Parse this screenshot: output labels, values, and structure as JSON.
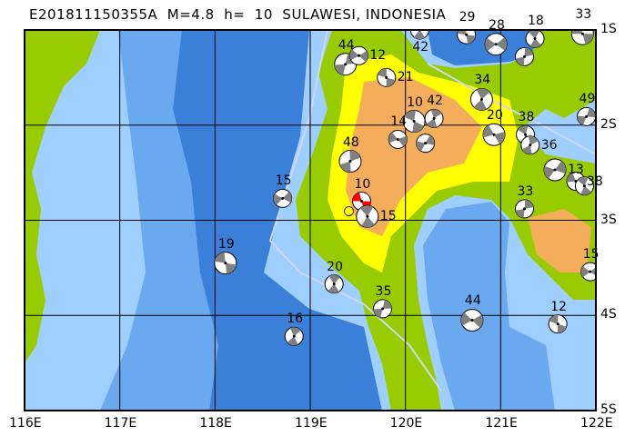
{
  "header": {
    "title": "E201811150355A  M=4.8  h=  10  SULAWESI, INDONESIA"
  },
  "map": {
    "lon_range": [
      116,
      122
    ],
    "lat_range": [
      -1,
      -5
    ],
    "x_ticks": [
      "116E",
      "117E",
      "118E",
      "119E",
      "120E",
      "121E",
      "122E"
    ],
    "y_ticks": [
      "1S",
      "2S",
      "3S",
      "4S",
      "5S"
    ],
    "colors": {
      "deep_sea": "#3a80d8",
      "mid_sea": "#6aa8f0",
      "shallow_sea": "#9ecfff",
      "lowland": "#99cc00",
      "hills": "#ffff00",
      "highland": "#f4ad5a",
      "mechanism_fill": "#808080",
      "main_event": "#ff0000",
      "epicenter": "#ffff00"
    }
  },
  "events": [
    {
      "lon": 121.86,
      "lat": -1.04,
      "depth": "33"
    },
    {
      "lon": 121.36,
      "lat": -1.09,
      "depth": "18"
    },
    {
      "lon": 121.25,
      "lat": -1.28,
      "depth": ""
    },
    {
      "lon": 120.95,
      "lat": -1.15,
      "depth": "28"
    },
    {
      "lon": 120.64,
      "lat": -1.05,
      "depth": "29"
    },
    {
      "lon": 120.15,
      "lat": -1.0,
      "depth": "42"
    },
    {
      "lon": 119.37,
      "lat": -1.36,
      "depth": "44"
    },
    {
      "lon": 119.51,
      "lat": -1.27,
      "depth": "12"
    },
    {
      "lon": 119.8,
      "lat": -1.5,
      "depth": "21"
    },
    {
      "lon": 120.8,
      "lat": -1.73,
      "depth": "34"
    },
    {
      "lon": 121.9,
      "lat": -1.91,
      "depth": "49"
    },
    {
      "lon": 119.92,
      "lat": -2.15,
      "depth": "14"
    },
    {
      "lon": 120.09,
      "lat": -1.96,
      "depth": "10"
    },
    {
      "lon": 120.3,
      "lat": -1.93,
      "depth": "42"
    },
    {
      "lon": 120.21,
      "lat": -2.19,
      "depth": ""
    },
    {
      "lon": 120.93,
      "lat": -2.1,
      "depth": "20"
    },
    {
      "lon": 121.26,
      "lat": -2.1,
      "depth": "38"
    },
    {
      "lon": 121.31,
      "lat": -2.21,
      "depth": "36"
    },
    {
      "lon": 121.57,
      "lat": -2.47,
      "depth": "13"
    },
    {
      "lon": 121.79,
      "lat": -2.59,
      "depth": "38"
    },
    {
      "lon": 121.88,
      "lat": -2.64,
      "depth": ""
    },
    {
      "lon": 119.42,
      "lat": -2.38,
      "depth": "48"
    },
    {
      "lon": 118.71,
      "lat": -2.77,
      "depth": "15"
    },
    {
      "lon": 119.54,
      "lat": -2.8,
      "depth": "10",
      "main": true
    },
    {
      "lon": 119.6,
      "lat": -2.96,
      "depth": "15"
    },
    {
      "lon": 121.25,
      "lat": -2.88,
      "depth": "33"
    },
    {
      "lon": 121.94,
      "lat": -3.54,
      "depth": "15"
    },
    {
      "lon": 118.11,
      "lat": -3.45,
      "depth": "19"
    },
    {
      "lon": 119.25,
      "lat": -3.67,
      "depth": "20"
    },
    {
      "lon": 119.76,
      "lat": -3.93,
      "depth": "35"
    },
    {
      "lon": 120.7,
      "lat": -4.05,
      "depth": "44"
    },
    {
      "lon": 121.6,
      "lat": -4.09,
      "depth": "12"
    },
    {
      "lon": 118.83,
      "lat": -4.22,
      "depth": "16"
    }
  ]
}
